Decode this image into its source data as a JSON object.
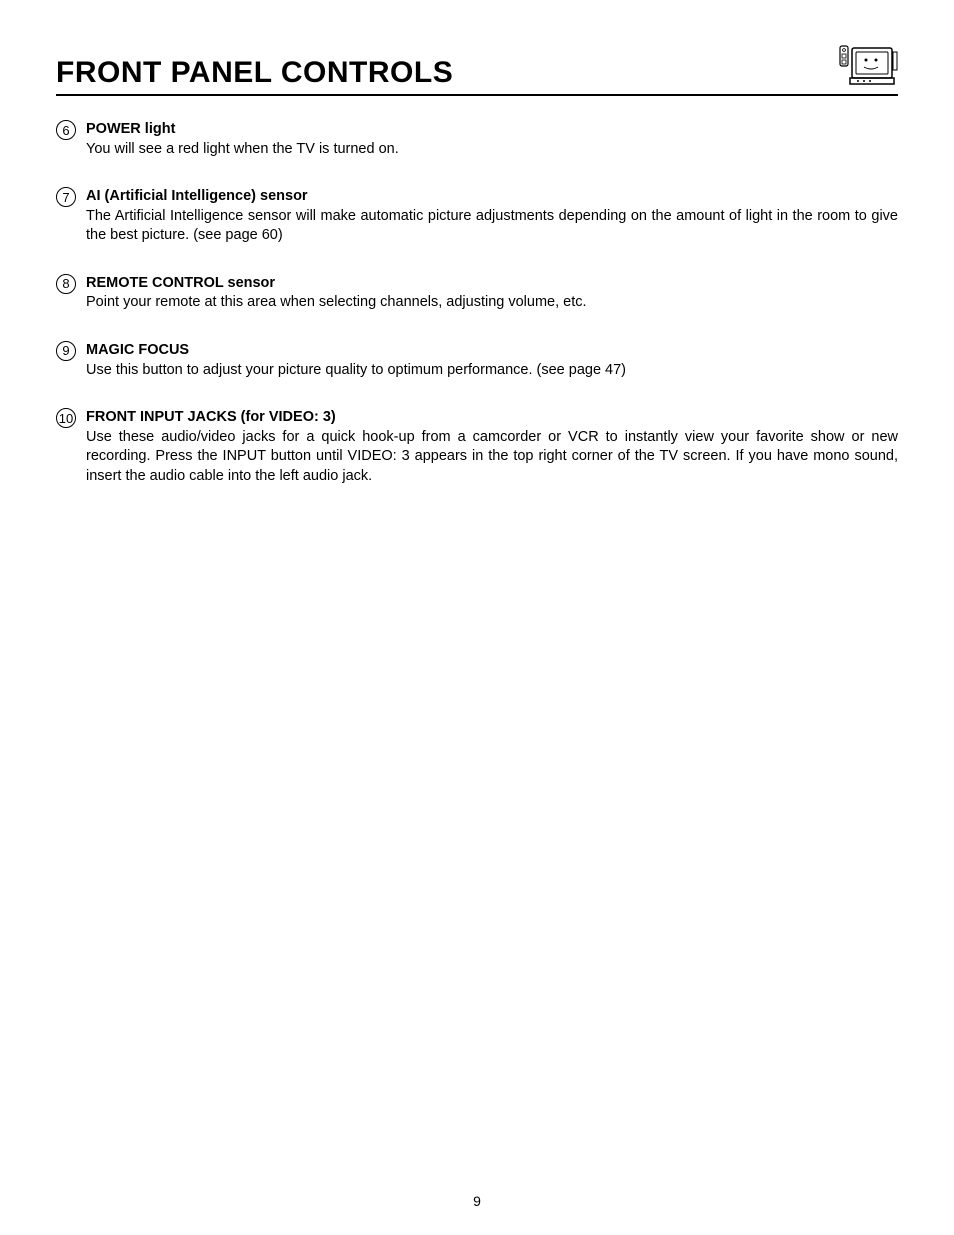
{
  "title": "FRONT PANEL CONTROLS",
  "pageNumber": "9",
  "items": [
    {
      "num": "6",
      "heading": "POWER light",
      "desc": "You will see a red light when the TV is turned on."
    },
    {
      "num": "7",
      "heading": "AI (Artificial Intelligence) sensor",
      "desc": "The Artificial Intelligence sensor will make automatic picture adjustments depending on the amount of light in the room to give the best picture. (see page 60)"
    },
    {
      "num": "8",
      "heading": "REMOTE CONTROL sensor",
      "desc": "Point your remote at this area when selecting channels, adjusting volume, etc."
    },
    {
      "num": "9",
      "heading": "MAGIC FOCUS",
      "desc": "Use this button to adjust your picture quality to optimum performance. (see page 47)"
    },
    {
      "num": "10",
      "heading": "FRONT INPUT JACKS (for VIDEO: 3)",
      "desc": "Use these audio/video jacks for a quick hook-up from a camcorder or VCR to instantly view your favorite show or new recording. Press the INPUT button until VIDEO: 3 appears in the top right corner of the TV screen.  If you have mono sound, insert the audio cable into the left audio jack."
    }
  ]
}
